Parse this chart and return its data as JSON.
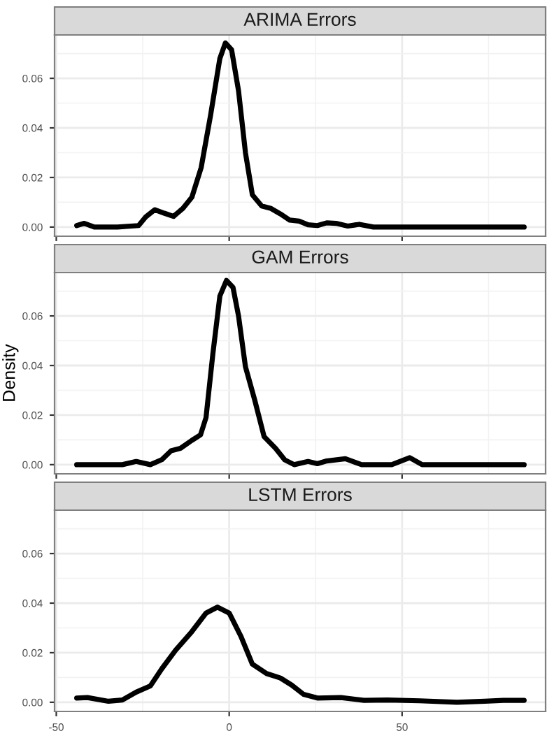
{
  "chart_data": [
    {
      "type": "line",
      "title": "ARIMA Errors",
      "xlim": [
        -50.5,
        91.5
      ],
      "ylim": [
        -0.0037,
        0.0775
      ],
      "xticks": [
        -50,
        0,
        50
      ],
      "yticks": [
        {
          "value": 0,
          "label": "0.00"
        },
        {
          "value": 0.02,
          "label": "0.02"
        },
        {
          "value": 0.04,
          "label": "0.04"
        },
        {
          "value": 0.06,
          "label": "0.06"
        }
      ],
      "grid": true,
      "tick_labels": "y",
      "series": [
        {
          "color": "#000000",
          "x": [
            -44.1,
            -41.9,
            -39,
            -32.3,
            -26.2,
            -24.2,
            -21.5,
            -18.8,
            -16.1,
            -13.4,
            -10.8,
            -8.1,
            -5.4,
            -2.7,
            -1.1,
            0.7,
            2.7,
            4.7,
            6.7,
            9.4,
            12.1,
            14.8,
            17.5,
            20.2,
            22.8,
            25.5,
            28.2,
            30.9,
            34.3,
            37.6,
            41.7,
            55.1,
            85.3
          ],
          "values": [
            0.0006,
            0.0015,
            0,
            0,
            0.0006,
            0.004,
            0.007,
            0.0056,
            0.0043,
            0.0075,
            0.012,
            0.024,
            0.045,
            0.068,
            0.0743,
            0.0715,
            0.055,
            0.03,
            0.013,
            0.0085,
            0.0075,
            0.0053,
            0.0028,
            0.0024,
            0.0009,
            0.0006,
            0.0017,
            0.0015,
            0.0004,
            0.0011,
            0,
            0,
            0
          ]
        }
      ]
    },
    {
      "type": "line",
      "title": "GAM Errors",
      "ylabel": "Density",
      "xlim": [
        -50.5,
        91.5
      ],
      "ylim": [
        -0.0037,
        0.0775
      ],
      "xticks": [
        -50,
        0,
        50
      ],
      "yticks": [
        {
          "value": 0,
          "label": "0.00"
        },
        {
          "value": 0.02,
          "label": "0.02"
        },
        {
          "value": 0.04,
          "label": "0.04"
        },
        {
          "value": 0.06,
          "label": "0.06"
        }
      ],
      "grid": true,
      "tick_labels": "y",
      "series": [
        {
          "color": "#000000",
          "x": [
            -44.1,
            -30.9,
            -26.9,
            -22.8,
            -19.5,
            -16.8,
            -14.1,
            -10.8,
            -8.3,
            -6.7,
            -4.7,
            -2.7,
            -0.8,
            1.1,
            2.7,
            4.7,
            7.4,
            10.1,
            13.4,
            16.1,
            18.8,
            22.8,
            25.5,
            28.2,
            33.6,
            38.3,
            47,
            52.2,
            55.8,
            85.3
          ],
          "values": [
            0,
            0,
            0.0013,
            0,
            0.002,
            0.0056,
            0.0066,
            0.0098,
            0.012,
            0.019,
            0.045,
            0.068,
            0.0743,
            0.0715,
            0.06,
            0.0395,
            0.026,
            0.0113,
            0.0066,
            0.0019,
            0,
            0.0013,
            0.0004,
            0.0015,
            0.0024,
            0,
            0,
            0.0028,
            0,
            0
          ]
        }
      ]
    },
    {
      "type": "line",
      "title": "LSTM Errors",
      "xlim": [
        -50.5,
        91.5
      ],
      "ylim": [
        -0.0037,
        0.0775
      ],
      "xticks": [
        -50,
        0,
        50
      ],
      "yticks": [
        {
          "value": 0,
          "label": "0.00"
        },
        {
          "value": 0.02,
          "label": "0.02"
        },
        {
          "value": 0.04,
          "label": "0.04"
        },
        {
          "value": 0.06,
          "label": "0.06"
        }
      ],
      "grid": true,
      "series": [
        {
          "color": "#000000",
          "x": [
            -44.1,
            -41,
            -34.9,
            -30.9,
            -26.9,
            -22.8,
            -19.5,
            -15.5,
            -10.8,
            -6.7,
            -3.4,
            0,
            3.4,
            6.7,
            10.8,
            14.8,
            18.1,
            21.5,
            25.5,
            32.3,
            39,
            45.7,
            55.1,
            65.9,
            73.9,
            79.3,
            85.3
          ],
          "values": [
            0.0017,
            0.0019,
            0.0004,
            0.0009,
            0.0041,
            0.0066,
            0.0135,
            0.021,
            0.0285,
            0.036,
            0.0384,
            0.036,
            0.0266,
            0.0154,
            0.0116,
            0.0098,
            0.0069,
            0.0032,
            0.0017,
            0.0019,
            0.0008,
            0.0009,
            0.0006,
            0,
            0.0004,
            0.0008,
            0.0008
          ]
        }
      ]
    }
  ]
}
